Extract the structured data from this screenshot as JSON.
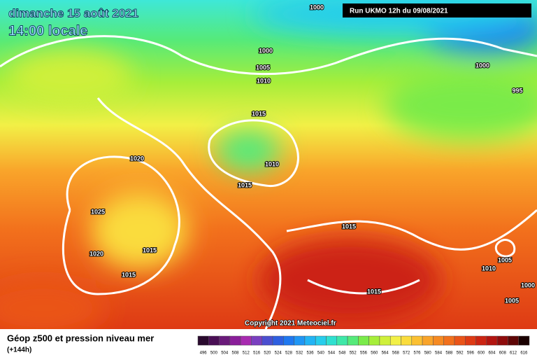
{
  "header": {
    "date": "dimanche 15 août 2021",
    "time": "14:00 locale"
  },
  "run": "Run UKMO 12h du 09/08/2021",
  "isobar_labels": [
    "1000",
    "1000",
    "1005",
    "1010",
    "1015",
    "1020",
    "1010",
    "1015",
    "1025",
    "1015",
    "1020",
    "1015",
    "1015",
    "1015",
    "1000",
    "995",
    "1005",
    "1010",
    "1000",
    "1005"
  ],
  "copyright": "Copyright 2021 Meteociel.fr",
  "legend": {
    "title": "Géop z500 et pression niveau mer",
    "lead": "(+144h)",
    "levels": [
      496,
      500,
      504,
      508,
      512,
      516,
      520,
      524,
      528,
      532,
      536,
      540,
      544,
      548,
      552,
      556,
      560,
      564,
      568,
      572,
      576,
      580,
      584,
      588,
      592,
      596,
      600,
      604,
      608,
      612,
      616
    ],
    "colors": [
      "#2a0a2e",
      "#4a0f55",
      "#6a1a7a",
      "#8a1e9a",
      "#a82bb0",
      "#7a3fc0",
      "#4b4fd0",
      "#2e5fe0",
      "#1f78f0",
      "#1f96f5",
      "#22b4f5",
      "#27cdec",
      "#2fe0d0",
      "#3ee8a8",
      "#55ea7a",
      "#7aeb4a",
      "#a6ee3a",
      "#cff03a",
      "#f2f046",
      "#fadc3c",
      "#fbc032",
      "#f9a42a",
      "#f68a22",
      "#f2701c",
      "#ea5418",
      "#de3a14",
      "#cc2412",
      "#b31510",
      "#8f0c0c",
      "#5e0606",
      "#1a0000"
    ]
  }
}
